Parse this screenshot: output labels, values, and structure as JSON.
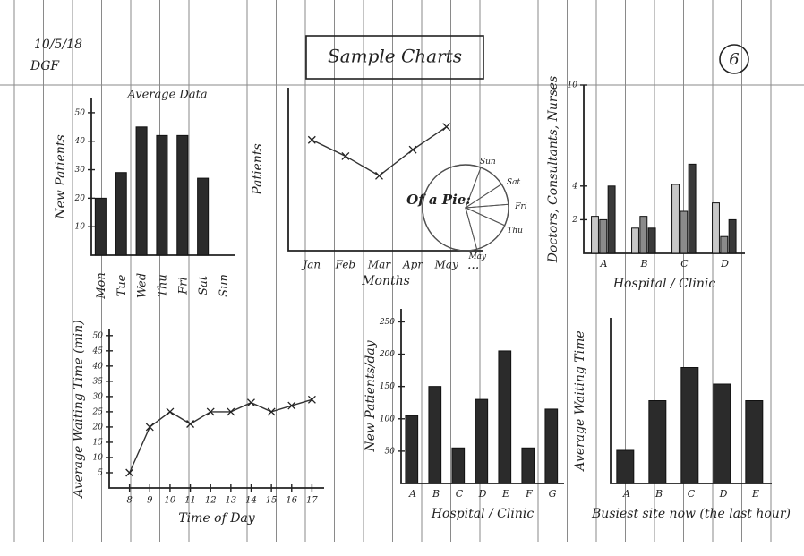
{
  "header": {
    "date": "10/5/18",
    "initials": "DGF",
    "title": "Sample Charts",
    "page": "6"
  },
  "chart_data": [
    {
      "type": "bar",
      "title": "Average Data",
      "ylabel": "New Patients",
      "categories": [
        "Mon",
        "Tue",
        "Wed",
        "Thu",
        "Fri",
        "Sat",
        "Sun"
      ],
      "values": [
        20,
        29,
        45,
        42,
        42,
        27,
        null
      ],
      "color": "#2b2b2b",
      "ylim": [
        0,
        55
      ],
      "yticks": [
        10,
        20,
        30,
        40,
        50
      ],
      "rotate_labels": true
    },
    {
      "type": "line",
      "ylabel": "Patients",
      "xlabel": "Months",
      "categories": [
        "Jan",
        "Feb",
        "Mar",
        "Apr",
        "May"
      ],
      "annotation": "...",
      "values": [
        6.8,
        5.8,
        4.6,
        6.2,
        7.6
      ],
      "color": "#333333",
      "ylim": [
        0,
        10
      ]
    },
    {
      "type": "pie",
      "title": "Of a Pie:",
      "labels": [
        "Sun",
        "Sat",
        "Fri",
        "Thu",
        "May"
      ],
      "values": [
        10,
        8,
        8,
        14,
        60
      ],
      "color": "#555555"
    },
    {
      "type": "bar",
      "ylabel": "Doctors, Consultants, Nurses",
      "xlabel": "Hospital / Clinic",
      "categories": [
        "A",
        "B",
        "C",
        "D"
      ],
      "series": [
        {
          "color": "#c8c8c8",
          "values": [
            2.2,
            1.5,
            4.1,
            3
          ]
        },
        {
          "color": "#8a8a8a",
          "values": [
            2,
            2.2,
            2.5,
            1
          ]
        },
        {
          "color": "#3a3a3a",
          "values": [
            4,
            1.5,
            5.3,
            2
          ]
        }
      ],
      "ylim": [
        0,
        10
      ],
      "yticks": [
        2,
        4,
        10
      ]
    },
    {
      "type": "line",
      "ylabel": "Average Waiting Time (min)",
      "xlabel": "Time of Day",
      "x": [
        8,
        9,
        10,
        11,
        12,
        13,
        14,
        15,
        16,
        17
      ],
      "values": [
        5,
        20,
        25,
        21,
        25,
        25,
        28,
        25,
        27,
        29
      ],
      "color": "#333333",
      "xlim": [
        7,
        17.6
      ],
      "xticks": [
        8,
        9,
        10,
        11,
        12,
        13,
        14,
        15,
        16,
        17
      ],
      "ylim": [
        0,
        52
      ],
      "yticks": [
        5,
        10,
        15,
        20,
        25,
        30,
        35,
        40,
        45,
        50
      ]
    },
    {
      "type": "bar",
      "ylabel": "New Patients/day",
      "xlabel": "Hospital / Clinic",
      "categories": [
        "A",
        "B",
        "C",
        "D",
        "E",
        "F",
        "G"
      ],
      "values": [
        105,
        150,
        55,
        130,
        205,
        55,
        115
      ],
      "color": "#2b2b2b",
      "ylim": [
        0,
        270
      ],
      "yticks": [
        50,
        100,
        150,
        200,
        250
      ]
    },
    {
      "type": "bar",
      "ylabel": "Average Waiting Time",
      "xlabel": "Busiest site now (the last hour)",
      "categories": [
        "A",
        "B",
        "C",
        "D",
        "E"
      ],
      "values": [
        2,
        5,
        7,
        6,
        5
      ],
      "color": "#2b2b2b",
      "ylim": [
        0,
        10
      ]
    }
  ]
}
